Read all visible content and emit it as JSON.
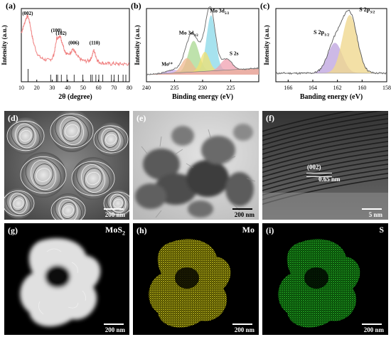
{
  "figure": {
    "panels": {
      "a": {
        "tag": "(a)"
      },
      "b": {
        "tag": "(b)"
      },
      "c": {
        "tag": "(c)"
      },
      "d": {
        "tag": "(d)",
        "scale": "200 nm"
      },
      "e": {
        "tag": "(e)",
        "scale": "200 nm"
      },
      "f": {
        "tag": "(f)",
        "scale": "5 nm",
        "plane": "(002)",
        "spacing": "0.65 nm"
      },
      "g": {
        "tag": "(g)",
        "scale": "200 nm",
        "element": "MoS",
        "element_sub": "2"
      },
      "h": {
        "tag": "(h)",
        "scale": "200 nm",
        "element": "Mo"
      },
      "i": {
        "tag": "(i)",
        "scale": "200 nm",
        "element": "S"
      }
    }
  },
  "chart_data": [
    {
      "id": "a",
      "type": "line",
      "xlabel": "2θ (degree)",
      "ylabel": "Intensity (a.u.)",
      "xlim": [
        10,
        80
      ],
      "xticks": [
        10,
        20,
        30,
        40,
        50,
        60,
        70,
        80
      ],
      "color": "#f08080",
      "peak_labels": [
        {
          "x": 14.1,
          "text": "(002)"
        },
        {
          "x": 32.7,
          "text": "(100)"
        },
        {
          "x": 35.8,
          "text": "(102)"
        },
        {
          "x": 44.0,
          "text": "(006)"
        },
        {
          "x": 57.5,
          "text": "(110)"
        }
      ],
      "series": [
        {
          "x": [
            10,
            11,
            12,
            13,
            14,
            15,
            16,
            17,
            18,
            20,
            22,
            24,
            26,
            28,
            30,
            31,
            32,
            33,
            34,
            35,
            36,
            37,
            38,
            39,
            40,
            42,
            43,
            44,
            45,
            46,
            48,
            50,
            52,
            54,
            55,
            56,
            57,
            58,
            59,
            60,
            62,
            64,
            66,
            68,
            70,
            72,
            74,
            76,
            78,
            80
          ],
          "values": [
            0.7,
            0.78,
            0.86,
            0.95,
            1.0,
            0.93,
            0.8,
            0.65,
            0.52,
            0.36,
            0.28,
            0.25,
            0.23,
            0.23,
            0.26,
            0.32,
            0.45,
            0.62,
            0.6,
            0.67,
            0.57,
            0.5,
            0.4,
            0.35,
            0.33,
            0.36,
            0.42,
            0.4,
            0.35,
            0.3,
            0.25,
            0.22,
            0.21,
            0.22,
            0.25,
            0.32,
            0.4,
            0.32,
            0.24,
            0.2,
            0.18,
            0.17,
            0.17,
            0.16,
            0.17,
            0.16,
            0.16,
            0.16,
            0.16,
            0.16
          ]
        }
      ],
      "reference_lines": [
        14.4,
        29.0,
        32.7,
        33.5,
        35.9,
        39.5,
        44.2,
        49.8,
        55.0,
        56.0,
        58.3,
        60.2,
        62.8,
        68.4,
        70.1,
        72.8,
        75.9,
        77.7
      ]
    },
    {
      "id": "b",
      "type": "area",
      "xlabel": "Binding energy (eV)",
      "ylabel": "Intensity (a.u.)",
      "xlim": [
        240,
        220
      ],
      "xticks": [
        240,
        235,
        230,
        225
      ],
      "peaks": [
        {
          "name": "Mo⁶⁺",
          "center": 235.3,
          "height": 0.05,
          "width": 1.2,
          "color": "#c8a8e8"
        },
        {
          "name": "Mo 3d3/2",
          "center": 231.6,
          "height": 0.48,
          "width": 0.95,
          "color": "#a8d890"
        },
        {
          "name": "Mo 3d3/2 (fill)",
          "center": 232.8,
          "height": 0.22,
          "width": 0.95,
          "color": "#f0b890"
        },
        {
          "name": "Mo 3d5/2",
          "center": 228.5,
          "height": 0.86,
          "width": 0.8,
          "color": "#88d8e8"
        },
        {
          "name": "Mo 3d5/2 (fill)",
          "center": 229.6,
          "height": 0.3,
          "width": 0.8,
          "color": "#f0e070"
        },
        {
          "name": "S 2s",
          "center": 225.8,
          "height": 0.17,
          "width": 1.0,
          "color": "#f0a0b0"
        }
      ],
      "peak_labels": [
        "Mo⁶⁺",
        "Mo 3d",
        "Mo 3d",
        "S 2s"
      ]
    },
    {
      "id": "c",
      "type": "area",
      "xlabel": "Banding energy (eV)",
      "ylabel": "Intensity (a.u.)",
      "xlim": [
        167,
        158
      ],
      "xticks": [
        166,
        164,
        162,
        160,
        158
      ],
      "peaks": [
        {
          "name": "S 2p1/2",
          "center": 162.2,
          "height": 0.48,
          "width": 0.6,
          "color": "#c0a8e0"
        },
        {
          "name": "S 2p3/2",
          "center": 161.0,
          "height": 0.92,
          "width": 0.6,
          "color": "#f0d890"
        }
      ],
      "peak_labels": [
        "S 2p",
        "S 2p"
      ]
    }
  ]
}
